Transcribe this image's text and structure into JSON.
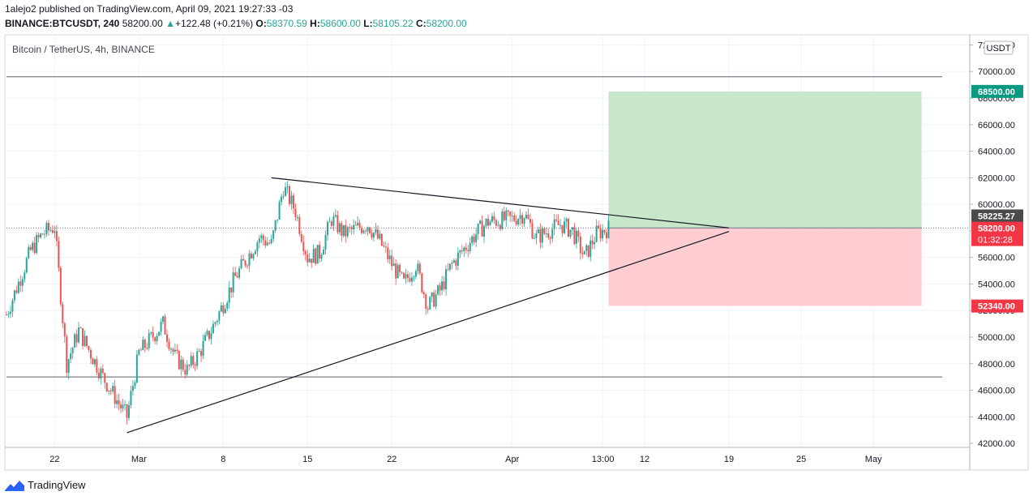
{
  "header": {
    "publisher_line": "1alejo2 published on TradingView.com, April 09, 2021 19:27:33 -03",
    "symbol": "BINANCE:BTCUSDT, 240",
    "last": "58200.00",
    "change_arrow": "▲",
    "change": "+122.48 (+0.21%)",
    "o_label": "O:",
    "o_value": "58370.59",
    "h_label": "H:",
    "h_value": "58600.00",
    "l_label": "L:",
    "l_value": "58105.22",
    "c_label": "C:",
    "c_value": "58200.00"
  },
  "footer": {
    "brand": "TradingView"
  },
  "colors": {
    "up": "#26a69a",
    "down": "#ef5350",
    "profit_zone": "#c8e6c9",
    "loss_zone": "#ffcdd2",
    "target": "#089981",
    "stop": "#f23645",
    "price_tag": "#f23645",
    "prev_tag": "#4a4a4a"
  },
  "chart_data": {
    "type": "candlestick",
    "title": "Bitcoin / TetherUS, 4h, BINANCE",
    "currency_label": "USDT",
    "ylim": [
      41700,
      72700
    ],
    "yticks": [
      42000,
      44000,
      46000,
      48000,
      50000,
      52000,
      54000,
      56000,
      58000,
      60000,
      62000,
      64000,
      66000,
      68000,
      70000,
      72000
    ],
    "ytick_labels": [
      "42000.00",
      "44000.00",
      "46000.00",
      "48000.00",
      "50000.00",
      "52000.00",
      "54000.00",
      "56000.00",
      "58000.00",
      "60000.00",
      "62000.00",
      "64000.00",
      "66000.00",
      "68000.00",
      "70000.00",
      "72000.00"
    ],
    "x_start": "2021-02-18",
    "x_end": "2021-05-09",
    "xticks": [
      {
        "date": "2021-02-22",
        "label": "22"
      },
      {
        "date": "2021-03-01",
        "label": "Mar"
      },
      {
        "date": "2021-03-08",
        "label": "8"
      },
      {
        "date": "2021-03-15",
        "label": "15"
      },
      {
        "date": "2021-03-22",
        "label": "22"
      },
      {
        "date": "2021-04-01",
        "label": "Apr"
      },
      {
        "date": "2021-04-08T13:00",
        "label": "13:00"
      },
      {
        "date": "2021-04-12",
        "label": "12"
      },
      {
        "date": "2021-04-19",
        "label": "19"
      },
      {
        "date": "2021-04-25",
        "label": "25"
      },
      {
        "date": "2021-05-01",
        "label": "May"
      }
    ],
    "keypoints": [
      {
        "date": "2021-02-18",
        "price": 51700
      },
      {
        "date": "2021-02-20",
        "price": 56500
      },
      {
        "date": "2021-02-21",
        "price": 57800
      },
      {
        "date": "2021-02-22",
        "price": 58300
      },
      {
        "date": "2021-02-23",
        "price": 48000
      },
      {
        "date": "2021-02-24",
        "price": 50500
      },
      {
        "date": "2021-02-26",
        "price": 47000
      },
      {
        "date": "2021-02-28",
        "price": 44000
      },
      {
        "date": "2021-03-01",
        "price": 48800
      },
      {
        "date": "2021-03-03",
        "price": 51000
      },
      {
        "date": "2021-03-04",
        "price": 48500
      },
      {
        "date": "2021-03-05",
        "price": 47500
      },
      {
        "date": "2021-03-06",
        "price": 48800
      },
      {
        "date": "2021-03-07",
        "price": 50500
      },
      {
        "date": "2021-03-09",
        "price": 54500
      },
      {
        "date": "2021-03-11",
        "price": 57500
      },
      {
        "date": "2021-03-12",
        "price": 57000
      },
      {
        "date": "2021-03-13",
        "price": 61300
      },
      {
        "date": "2021-03-14",
        "price": 59500
      },
      {
        "date": "2021-03-15",
        "price": 56000
      },
      {
        "date": "2021-03-16",
        "price": 56300
      },
      {
        "date": "2021-03-17",
        "price": 58900
      },
      {
        "date": "2021-03-18",
        "price": 57800
      },
      {
        "date": "2021-03-20",
        "price": 58500
      },
      {
        "date": "2021-03-21",
        "price": 57200
      },
      {
        "date": "2021-03-22",
        "price": 55500
      },
      {
        "date": "2021-03-23",
        "price": 54000
      },
      {
        "date": "2021-03-24",
        "price": 55500
      },
      {
        "date": "2021-03-25",
        "price": 52300
      },
      {
        "date": "2021-03-26",
        "price": 53500
      },
      {
        "date": "2021-03-27",
        "price": 55500
      },
      {
        "date": "2021-03-29",
        "price": 57800
      },
      {
        "date": "2021-03-30",
        "price": 58700
      },
      {
        "date": "2021-03-31",
        "price": 58800
      },
      {
        "date": "2021-04-01",
        "price": 58900
      },
      {
        "date": "2021-04-02",
        "price": 59300
      },
      {
        "date": "2021-04-03",
        "price": 57500
      },
      {
        "date": "2021-04-04",
        "price": 58000
      },
      {
        "date": "2021-04-05",
        "price": 58500
      },
      {
        "date": "2021-04-06",
        "price": 58000
      },
      {
        "date": "2021-04-07",
        "price": 56000
      },
      {
        "date": "2021-04-08",
        "price": 57800
      },
      {
        "date": "2021-04-09",
        "price": 58200
      }
    ],
    "series": [
      {
        "name": "Upper trendline",
        "type": "line",
        "points": [
          {
            "date": "2021-03-12",
            "price": 62000
          },
          {
            "date": "2021-04-19",
            "price": 58225
          }
        ]
      },
      {
        "name": "Lower trendline",
        "type": "line",
        "points": [
          {
            "date": "2021-02-28",
            "price": 42800
          },
          {
            "date": "2021-04-19",
            "price": 57950
          }
        ]
      }
    ],
    "horizontal_lines": [
      69600,
      47000
    ],
    "current_price_line": 58200,
    "position": {
      "start": "2021-04-09",
      "end": "2021-05-05",
      "entry": 58225.27,
      "target": 68500,
      "stop": 52340
    },
    "price_tags": {
      "target": "68500.00",
      "prev": "58225.27",
      "last": "58200.00",
      "countdown": "01:32:28",
      "stop": "52340.00"
    }
  }
}
